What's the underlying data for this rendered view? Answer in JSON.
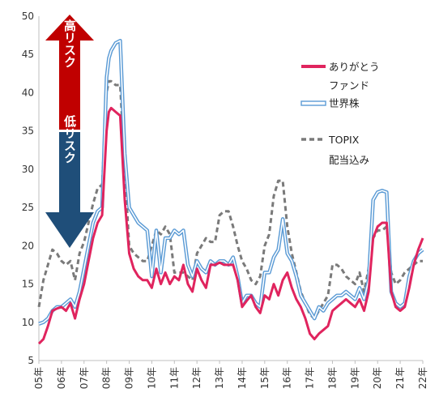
{
  "colors": {
    "arigato": "#e0245e",
    "world": "#5b9bd5",
    "topix": "#7a7a7a",
    "high_arrow": "#c00000",
    "low_arrow": "#1f4e79"
  },
  "arrows": {
    "high_label": "高リスク",
    "low_label": "低リスク"
  },
  "chart_data": {
    "type": "line",
    "ylim": [
      5,
      50
    ],
    "y_ticks": [
      5,
      10,
      15,
      20,
      25,
      30,
      35,
      40,
      45,
      50
    ],
    "xlim": [
      2005,
      2022
    ],
    "x_tick_labels": [
      "05年",
      "06年",
      "07年",
      "08年",
      "09年",
      "10年",
      "11年",
      "12年",
      "13年",
      "14年",
      "15年",
      "16年",
      "17年",
      "18年",
      "19年",
      "20年",
      "21年",
      "22年"
    ],
    "x_tick_values": [
      2005,
      2006,
      2007,
      2008,
      2009,
      2010,
      2011,
      2012,
      2013,
      2014,
      2015,
      2016,
      2017,
      2018,
      2019,
      2020,
      2021,
      2022
    ],
    "legend": [
      {
        "label_line1": "ありがとう",
        "label_line2": "ファンド"
      },
      {
        "label_line1": "世界株",
        "label_line2": ""
      },
      {
        "label_line1": "TOPIX",
        "label_line2": "配当込み"
      }
    ],
    "series": [
      {
        "key": "arigato",
        "x": [
          2005.0,
          2005.2,
          2005.4,
          2005.6,
          2005.8,
          2006.0,
          2006.2,
          2006.4,
          2006.6,
          2006.8,
          2007.0,
          2007.2,
          2007.4,
          2007.6,
          2007.8,
          2008.0,
          2008.1,
          2008.2,
          2008.4,
          2008.6,
          2008.8,
          2009.0,
          2009.2,
          2009.4,
          2009.6,
          2009.8,
          2010.0,
          2010.2,
          2010.4,
          2010.6,
          2010.8,
          2011.0,
          2011.2,
          2011.4,
          2011.6,
          2011.8,
          2012.0,
          2012.2,
          2012.4,
          2012.6,
          2012.8,
          2013.0,
          2013.2,
          2013.4,
          2013.6,
          2013.8,
          2014.0,
          2014.2,
          2014.4,
          2014.6,
          2014.8,
          2015.0,
          2015.2,
          2015.4,
          2015.6,
          2015.8,
          2016.0,
          2016.2,
          2016.4,
          2016.6,
          2016.8,
          2017.0,
          2017.2,
          2017.4,
          2017.6,
          2017.8,
          2018.0,
          2018.2,
          2018.4,
          2018.6,
          2018.8,
          2019.0,
          2019.2,
          2019.4,
          2019.6,
          2019.8,
          2020.0,
          2020.2,
          2020.4,
          2020.6,
          2020.8,
          2021.0,
          2021.2,
          2021.4,
          2021.6,
          2021.8,
          2022.0
        ],
        "y": [
          7.2,
          7.8,
          9.5,
          11.5,
          11.8,
          12.0,
          11.5,
          12.5,
          10.5,
          13.0,
          15.0,
          18.0,
          21.0,
          23.0,
          24.0,
          35.0,
          37.5,
          38.0,
          37.5,
          37.0,
          26.0,
          19.0,
          17.0,
          16.0,
          15.5,
          15.5,
          14.5,
          17.0,
          15.0,
          16.5,
          15.0,
          16.0,
          15.5,
          17.5,
          15.0,
          14.0,
          17.0,
          15.5,
          14.5,
          17.5,
          17.5,
          17.8,
          17.5,
          17.5,
          17.5,
          15.5,
          12.0,
          12.8,
          13.5,
          12.0,
          11.2,
          13.5,
          13.0,
          15.0,
          13.5,
          15.5,
          16.5,
          14.5,
          13.0,
          12.0,
          10.5,
          8.5,
          7.8,
          8.5,
          9.0,
          9.5,
          11.5,
          12.0,
          12.5,
          13.0,
          12.5,
          12.0,
          13.0,
          11.5,
          14.0,
          21.0,
          22.5,
          23.0,
          23.0,
          14.0,
          12.0,
          11.5,
          12.0,
          14.5,
          17.5,
          19.5,
          21.0
        ]
      },
      {
        "key": "world",
        "x": [
          2005.0,
          2005.2,
          2005.4,
          2005.6,
          2005.8,
          2006.0,
          2006.2,
          2006.4,
          2006.6,
          2006.8,
          2007.0,
          2007.2,
          2007.4,
          2007.6,
          2007.8,
          2008.0,
          2008.1,
          2008.2,
          2008.4,
          2008.6,
          2008.8,
          2009.0,
          2009.2,
          2009.4,
          2009.6,
          2009.8,
          2010.0,
          2010.2,
          2010.4,
          2010.6,
          2010.8,
          2011.0,
          2011.2,
          2011.4,
          2011.6,
          2011.8,
          2012.0,
          2012.2,
          2012.4,
          2012.6,
          2012.8,
          2013.0,
          2013.2,
          2013.4,
          2013.6,
          2013.8,
          2014.0,
          2014.2,
          2014.4,
          2014.6,
          2014.8,
          2015.0,
          2015.2,
          2015.4,
          2015.6,
          2015.8,
          2016.0,
          2016.2,
          2016.4,
          2016.6,
          2016.8,
          2017.0,
          2017.2,
          2017.4,
          2017.6,
          2017.8,
          2018.0,
          2018.2,
          2018.4,
          2018.6,
          2018.8,
          2019.0,
          2019.2,
          2019.4,
          2019.6,
          2019.8,
          2020.0,
          2020.2,
          2020.4,
          2020.6,
          2020.8,
          2021.0,
          2021.2,
          2021.4,
          2021.6,
          2021.8,
          2022.0
        ],
        "y": [
          9.8,
          10.0,
          10.5,
          11.5,
          12.0,
          12.0,
          12.5,
          13.0,
          12.0,
          14.0,
          17.0,
          20.0,
          23.0,
          24.5,
          25.0,
          42.0,
          44.5,
          45.5,
          46.5,
          46.8,
          32.0,
          25.0,
          24.0,
          23.0,
          22.5,
          22.0,
          16.0,
          22.0,
          16.5,
          21.0,
          21.0,
          22.0,
          21.5,
          22.0,
          17.5,
          16.0,
          18.0,
          17.0,
          16.5,
          18.0,
          17.5,
          18.0,
          18.0,
          17.5,
          18.5,
          16.0,
          12.5,
          13.5,
          13.5,
          12.5,
          12.0,
          16.5,
          16.5,
          18.5,
          19.5,
          23.5,
          19.0,
          18.0,
          16.0,
          13.5,
          12.5,
          11.5,
          10.5,
          12.0,
          11.5,
          12.5,
          13.0,
          13.5,
          13.5,
          14.0,
          13.5,
          13.0,
          14.5,
          13.0,
          15.5,
          26.0,
          27.0,
          27.2,
          27.0,
          14.0,
          12.5,
          12.0,
          12.5,
          16.0,
          18.0,
          19.0,
          19.5
        ]
      },
      {
        "key": "topix",
        "x": [
          2005.0,
          2005.2,
          2005.4,
          2005.6,
          2005.8,
          2006.0,
          2006.2,
          2006.4,
          2006.6,
          2006.8,
          2007.0,
          2007.2,
          2007.4,
          2007.6,
          2007.8,
          2008.0,
          2008.1,
          2008.2,
          2008.4,
          2008.6,
          2008.8,
          2009.0,
          2009.2,
          2009.4,
          2009.6,
          2009.8,
          2010.0,
          2010.2,
          2010.4,
          2010.6,
          2010.8,
          2011.0,
          2011.2,
          2011.4,
          2011.6,
          2011.8,
          2012.0,
          2012.2,
          2012.4,
          2012.6,
          2012.8,
          2013.0,
          2013.2,
          2013.4,
          2013.6,
          2013.8,
          2014.0,
          2014.2,
          2014.4,
          2014.6,
          2014.8,
          2015.0,
          2015.2,
          2015.4,
          2015.6,
          2015.8,
          2016.0,
          2016.2,
          2016.4,
          2016.6,
          2016.8,
          2017.0,
          2017.2,
          2017.4,
          2017.6,
          2017.8,
          2018.0,
          2018.2,
          2018.4,
          2018.6,
          2018.8,
          2019.0,
          2019.2,
          2019.4,
          2019.6,
          2019.8,
          2020.0,
          2020.2,
          2020.4,
          2020.6,
          2020.8,
          2021.0,
          2021.2,
          2021.4,
          2021.6,
          2021.8,
          2022.0
        ],
        "y": [
          12.0,
          15.5,
          17.5,
          19.5,
          19.0,
          18.0,
          17.5,
          18.0,
          15.5,
          19.0,
          20.5,
          23.0,
          25.5,
          27.5,
          28.0,
          40.0,
          41.5,
          41.5,
          41.0,
          41.0,
          30.0,
          20.0,
          19.0,
          18.5,
          18.0,
          18.0,
          20.0,
          22.0,
          21.5,
          22.5,
          21.5,
          16.5,
          16.5,
          16.5,
          16.0,
          15.5,
          19.0,
          20.0,
          21.0,
          20.5,
          20.5,
          24.0,
          24.5,
          24.5,
          22.5,
          20.0,
          18.0,
          17.0,
          15.5,
          15.0,
          16.0,
          20.0,
          21.5,
          26.5,
          28.5,
          28.5,
          22.5,
          19.0,
          16.5,
          14.0,
          12.5,
          11.0,
          10.5,
          11.5,
          12.5,
          13.5,
          17.5,
          17.5,
          17.0,
          16.0,
          15.5,
          15.0,
          16.5,
          14.0,
          17.0,
          21.0,
          22.0,
          22.0,
          22.5,
          16.5,
          15.0,
          15.5,
          16.5,
          17.0,
          17.5,
          18.0,
          18.0
        ]
      }
    ]
  }
}
